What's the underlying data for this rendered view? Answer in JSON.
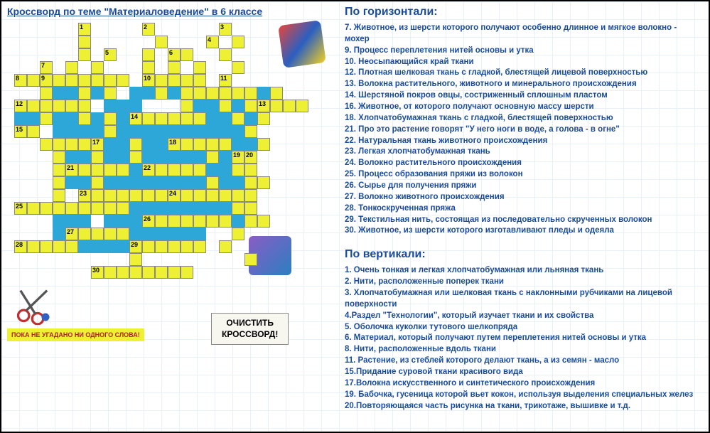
{
  "title": "Кроссворд по теме \"Материаловедение\" в 6 классе",
  "status": "ПОКА НЕ УГАДАНО НИ ОДНОГО СЛОВА!",
  "clear_button": "ОЧИСТИТЬ КРОССВОРД!",
  "horizontal": {
    "title": "По горизонтали:",
    "clues": [
      "7. Животное, из шерсти которого получают особенно длинное и мягкое волокно - мохер",
      "9. Процесс переплетения нитей основы и утка",
      "10. Неосыпающийся край ткани",
      "12. Плотная шелковая ткань с гладкой, блестящей лицевой поверхностью",
      "13. Волокна растительного, животного и минерального происхождения",
      "14. Шерстяной покров овцы, состриженный сплошным пластом",
      "16. Животное, от которого получают основную массу шерсти",
      "18. Хлопчатобумажная ткань с гладкой, блестящей поверхностью",
      "21. Про это растение говорят \"У него ноги в воде, а голова  - в огне\"",
      "22. Натуральная ткань животного происхождения",
      "23. Легкая хлопчатобумажная ткань",
      "24. Волокно растительного происхождения",
      "25. Процесс образования пряжи из волокон",
      "26. Сырье для получения пряжи",
      "27. Волокно  животного происхождения",
      "28. Тонкоскрученная пряжа",
      "29. Текстильная нить, состоящая из последовательно скрученных волокон",
      "30. Животное, из шерсти которого изготавливают пледы и одеяла"
    ]
  },
  "vertical": {
    "title": "По вертикали:",
    "clues": [
      "1. Очень тонкая и легкая хлопчатобумажная или льняная ткань",
      "2. Нити, расположенные поперек ткани",
      "3. Хлопчатобумажная или шелковая ткань с наклонными рубчиками на лицевой поверхности",
      "4.Раздел \"Технологии\", который изучает ткани и их свойства",
      "5. Оболочка куколки тутового шелкопряда",
      "6. Материал, который получают путем переплетения нитей основы и утка",
      "8.  Нити, расположенные вдоль ткани",
      "11. Растение, из стеблей которого делают ткань, а из семян - масло",
      "15.Придание суровой ткани красивого вида",
      "17.Волокна искусственного и синтетического происхождения",
      "19. Бабочка, гусеница которой вьет кокон, используя выделения специальных желез",
      "20.Повторяющаяся часть рисунка на ткани, трикотаже, вышивке и т.д."
    ]
  },
  "crossword": {
    "cell_size": 18,
    "fill_color": "#eef033",
    "pool_color": "#2da6d8",
    "border_color": "#888888",
    "grid": [
      ".....N1....N2.....N3.....",
      ".....C.....C...N4.C......",
      ".....C.N5..C.N6C..C......",
      "..N7.C.C...C.C.C..C......",
      "N8CN9CCCCCC.N10CCCC.N11...",
      "..CPPCPC.PPCPCCCCCCPC....",
      "N12CCCCC.PPP...CPPCPCN13CCC",
      "PPCPPCPCPN14CCCCCPPCPC....",
      "N15C.PPPPCPPPPPPPPPPC....",
      "16CCCCN17PPCPPN18CCCCPPC....",
      "...CPPCPPCPPPPPCPN19N20...",
      "...CN21CCCCPN22CCCCPPCC....",
      "...CPPCPPPPPPPPCPPCC....",
      "...C.N23CCCCCCN24CCCCCC....",
      "N25CCCCCCCCPPPPPPPPCC....",
      "...PPP.PPPN26CCCCCCPCC....",
      "...PN27CCCCPPPPPP..C.....",
      "N28CCCCPPPPN29CCCCC.C.....",
      ".........C........C.....",
      "......N30CCCCCCC..........."
    ]
  },
  "colors": {
    "title": "#1a4b9b",
    "clue": "#1a4b9b",
    "status_bg": "#eef033",
    "status_text": "#b02020"
  }
}
